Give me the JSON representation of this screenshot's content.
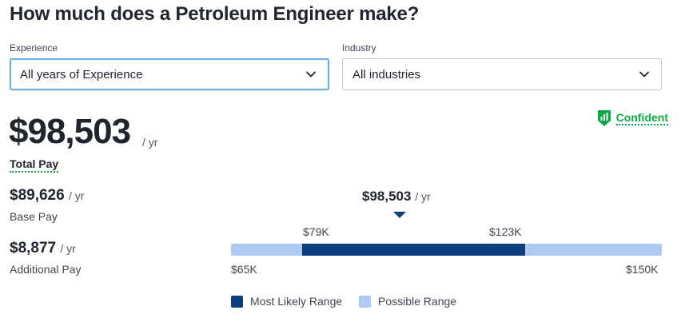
{
  "page": {
    "title": "How much does a Petroleum Engineer make?"
  },
  "filters": {
    "experience": {
      "label": "Experience",
      "value": "All years of Experience"
    },
    "industry": {
      "label": "Industry",
      "value": "All industries"
    }
  },
  "pay": {
    "total": {
      "amount": "$98,503",
      "unit": "/ yr",
      "label": "Total Pay"
    },
    "base": {
      "amount": "$89,626",
      "unit": "/ yr",
      "label": "Base Pay"
    },
    "additional": {
      "amount": "$8,877",
      "unit": "/ yr",
      "label": "Additional Pay"
    }
  },
  "confidence": {
    "label": "Confident",
    "color": "#0caa41",
    "icon": "bar-chart-shield-icon"
  },
  "range": {
    "median": {
      "amount": "$98,503",
      "unit": "/ yr",
      "value": 98503
    },
    "likely_low_label": "$79K",
    "likely_high_label": "$123K",
    "possible_low_label": "$65K",
    "possible_high_label": "$150K",
    "likely_low": 79000,
    "likely_high": 123000,
    "possible_low": 65000,
    "possible_high": 150000,
    "likely_color": "#0d3f7d",
    "possible_color": "#aec9f2"
  },
  "legend": {
    "likely": "Most Likely Range",
    "possible": "Possible Range"
  }
}
